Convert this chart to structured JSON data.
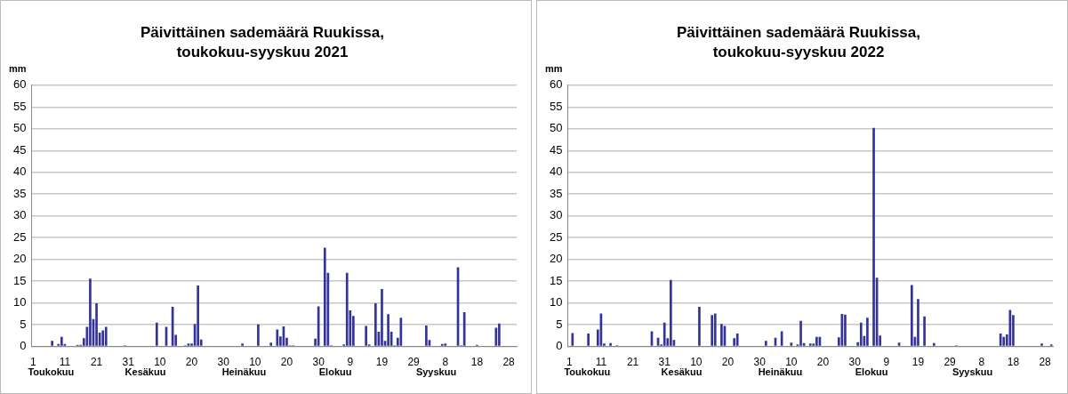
{
  "chart_data": [
    {
      "type": "bar",
      "title": "Päivittäinen sademäärä Ruukissa,",
      "subtitle": "toukokuu-syyskuu 2021",
      "ylabel": "mm",
      "color": "#333399",
      "ylim": [
        0,
        60
      ],
      "yticks": [
        0,
        5,
        10,
        15,
        20,
        25,
        30,
        35,
        40,
        45,
        50,
        55,
        60
      ],
      "grid": "y",
      "annotations": [
        "Toukokuu",
        "Kesäkuu",
        "Heinäkuu",
        "Elokuu",
        "Syyskuu"
      ],
      "categories": [
        "1",
        null,
        null,
        null,
        null,
        null,
        null,
        null,
        null,
        null,
        "11",
        null,
        null,
        null,
        null,
        null,
        null,
        null,
        null,
        null,
        "21",
        null,
        null,
        null,
        null,
        null,
        null,
        null,
        null,
        null,
        "31",
        null,
        null,
        null,
        null,
        null,
        null,
        null,
        null,
        null,
        "10",
        null,
        null,
        null,
        null,
        null,
        null,
        null,
        null,
        null,
        "20",
        null,
        null,
        null,
        null,
        null,
        null,
        null,
        null,
        null,
        "30",
        null,
        null,
        null,
        null,
        null,
        null,
        null,
        null,
        null,
        "10",
        null,
        null,
        null,
        null,
        null,
        null,
        null,
        null,
        null,
        "20",
        null,
        null,
        null,
        null,
        null,
        null,
        null,
        null,
        null,
        "30",
        null,
        null,
        null,
        null,
        null,
        null,
        null,
        null,
        null,
        "9",
        null,
        null,
        null,
        null,
        null,
        null,
        null,
        null,
        null,
        "19",
        null,
        null,
        null,
        null,
        null,
        null,
        null,
        null,
        null,
        "29",
        null,
        null,
        null,
        null,
        null,
        null,
        null,
        null,
        null,
        "8",
        null,
        null,
        null,
        null,
        null,
        null,
        null,
        null,
        null,
        "18",
        null,
        null,
        null,
        null,
        null,
        null,
        null,
        null,
        null,
        "28",
        null,
        null
      ],
      "values": [
        0,
        0,
        0,
        0,
        0,
        0,
        1.3,
        0,
        0.6,
        2.2,
        0.6,
        0,
        0,
        0,
        0.4,
        0.4,
        1.9,
        4.5,
        15.6,
        6.3,
        9.9,
        3.2,
        3.7,
        4.5,
        0,
        0,
        0,
        0,
        0,
        0.3,
        0,
        0,
        0,
        0,
        0,
        0,
        0,
        0,
        0,
        5.5,
        0,
        0,
        4.5,
        0,
        9.1,
        2.7,
        0,
        0,
        0.3,
        0.7,
        0.7,
        5.2,
        14,
        1.6,
        0,
        0,
        0,
        0,
        0,
        0,
        0,
        0,
        0,
        0,
        0,
        0,
        0.7,
        0,
        0,
        0,
        0,
        5.1,
        0,
        0,
        0,
        0.9,
        0,
        3.9,
        2.3,
        4.6,
        2.0,
        0.3,
        0.3,
        0,
        0,
        0,
        0,
        0,
        0,
        1.8,
        9.2,
        0,
        22.7,
        16.9,
        0.3,
        0,
        0,
        0,
        0.5,
        16.9,
        8.3,
        7.0,
        0,
        0,
        0,
        4.7,
        0.5,
        0,
        9.9,
        3.4,
        13.2,
        1.3,
        7.4,
        3.4,
        0.3,
        2.0,
        6.6,
        0,
        0,
        0,
        0,
        0,
        0,
        0,
        4.8,
        1.5,
        0,
        0,
        0,
        0.6,
        0.7,
        0,
        0,
        0,
        18.2,
        0.3,
        7.9,
        0,
        0,
        0,
        0.4,
        0,
        0,
        0,
        0,
        0,
        4.3,
        5.3,
        0,
        0,
        0,
        0,
        0
      ]
    },
    {
      "type": "bar",
      "title": "Päivittäinen sademäärä Ruukissa,",
      "subtitle": "toukokuu-syyskuu 2022",
      "ylabel": "mm",
      "color": "#333399",
      "ylim": [
        0,
        60
      ],
      "yticks": [
        0,
        5,
        10,
        15,
        20,
        25,
        30,
        35,
        40,
        45,
        50,
        55,
        60
      ],
      "grid": "y",
      "annotations": [
        "Toukokuu",
        "Kesäkuu",
        "Heinäkuu",
        "Elokuu",
        "Syyskuu"
      ],
      "categories": [
        "1",
        null,
        null,
        null,
        null,
        null,
        null,
        null,
        null,
        null,
        "11",
        null,
        null,
        null,
        null,
        null,
        null,
        null,
        null,
        null,
        "21",
        null,
        null,
        null,
        null,
        null,
        null,
        null,
        null,
        null,
        "31",
        null,
        null,
        null,
        null,
        null,
        null,
        null,
        null,
        null,
        "10",
        null,
        null,
        null,
        null,
        null,
        null,
        null,
        null,
        null,
        "20",
        null,
        null,
        null,
        null,
        null,
        null,
        null,
        null,
        null,
        "30",
        null,
        null,
        null,
        null,
        null,
        null,
        null,
        null,
        null,
        "10",
        null,
        null,
        null,
        null,
        null,
        null,
        null,
        null,
        null,
        "20",
        null,
        null,
        null,
        null,
        null,
        null,
        null,
        null,
        null,
        "30",
        null,
        null,
        null,
        null,
        null,
        null,
        null,
        null,
        null,
        "9",
        null,
        null,
        null,
        null,
        null,
        null,
        null,
        null,
        null,
        "19",
        null,
        null,
        null,
        null,
        null,
        null,
        null,
        null,
        null,
        "29",
        null,
        null,
        null,
        null,
        null,
        null,
        null,
        null,
        null,
        "8",
        null,
        null,
        null,
        null,
        null,
        null,
        null,
        null,
        null,
        "18",
        null,
        null,
        null,
        null,
        null,
        null,
        null,
        null,
        null,
        "28",
        null,
        null
      ],
      "values": [
        0,
        3.1,
        0,
        0,
        0,
        0,
        3.0,
        0,
        0,
        3.9,
        7.6,
        0.7,
        0,
        0.8,
        0,
        0.3,
        0,
        0,
        0,
        0,
        0,
        0,
        0,
        0,
        0,
        0,
        3.5,
        0,
        2.0,
        0.5,
        5.5,
        1.9,
        15.3,
        1.5,
        0,
        0,
        0,
        0,
        0,
        0,
        0,
        9.1,
        0,
        0,
        0,
        7.2,
        7.6,
        0,
        5.2,
        4.7,
        0,
        0,
        1.9,
        3.0,
        0,
        0,
        0,
        0,
        0,
        0,
        0,
        0,
        1.3,
        0,
        0,
        2.0,
        0,
        3.5,
        0,
        0,
        0.9,
        0,
        0.5,
        5.9,
        0.8,
        0,
        0.7,
        0.7,
        2.2,
        2.2,
        0,
        0,
        0,
        0,
        0,
        2.1,
        7.5,
        7.3,
        0,
        0,
        0,
        1.0,
        5.5,
        2.4,
        6.6,
        0,
        50.2,
        15.8,
        2.5,
        0,
        0,
        0,
        0,
        0,
        0.9,
        0,
        0,
        0,
        14.1,
        2.2,
        10.9,
        0,
        6.9,
        0,
        0,
        0.8,
        0,
        0,
        0,
        0,
        0,
        0,
        0.3,
        0,
        0,
        0,
        0,
        0,
        0,
        0,
        0,
        0,
        0,
        0,
        0,
        0,
        3.0,
        2.2,
        2.8,
        8.4,
        7.2,
        0,
        0,
        0,
        0,
        0,
        0,
        0,
        0,
        0.7,
        0,
        0,
        0.5
      ]
    }
  ]
}
